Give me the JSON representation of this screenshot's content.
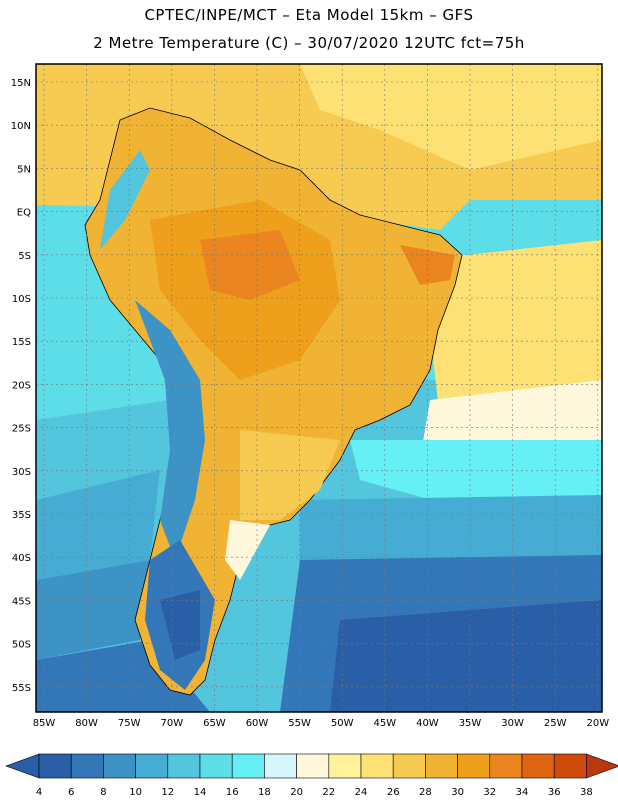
{
  "header": {
    "line1": "CPTEC/INPE/MCT –  Eta Model 15km – GFS",
    "line2": "2 Metre Temperature (C) – 30/07/2020 12UTC fct=75h"
  },
  "map": {
    "lat_labels": [
      "15N",
      "10N",
      "5N",
      "EQ",
      "5S",
      "10S",
      "15S",
      "20S",
      "25S",
      "30S",
      "35S",
      "40S",
      "45S",
      "50S",
      "55S"
    ],
    "lon_labels": [
      "85W",
      "80W",
      "75W",
      "70W",
      "65W",
      "60W",
      "55W",
      "50W",
      "45W",
      "40W",
      "35W",
      "30W",
      "25W",
      "20W"
    ]
  },
  "legend": {
    "values": [
      "4",
      "6",
      "8",
      "10",
      "12",
      "14",
      "16",
      "18",
      "20",
      "22",
      "24",
      "26",
      "28",
      "30",
      "32",
      "34",
      "36",
      "38"
    ],
    "colors": [
      "#2a5ea6",
      "#3477b8",
      "#3d93c6",
      "#47acd3",
      "#53c6dd",
      "#5cdde7",
      "#66f0f6",
      "#d5f6fb",
      "#fff8dc",
      "#fff29a",
      "#fde174",
      "#f7ca52",
      "#f0b334",
      "#ee9f1b",
      "#ea8520",
      "#e06512",
      "#cf4b0a",
      "#b9380d"
    ]
  }
}
